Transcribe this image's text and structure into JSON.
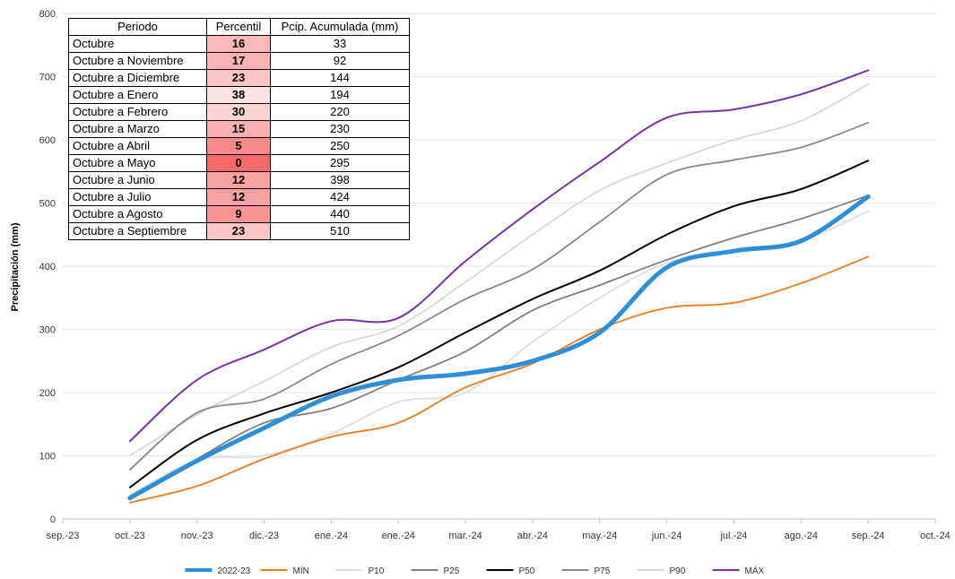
{
  "chart_data": {
    "type": "line",
    "ylabel": "Precipitación (mm)",
    "xlabel": "",
    "ylim": [
      0,
      800
    ],
    "yticks": [
      0,
      100,
      200,
      300,
      400,
      500,
      600,
      700,
      800
    ],
    "grid": "horizontal",
    "legend_position": "bottom",
    "x_ticks": [
      "sep.-23",
      "oct.-23",
      "nov.-23",
      "dic.-23",
      "ene.-24",
      "ene.-24",
      "mar.-24",
      "abr.-24",
      "may.-24",
      "jun.-24",
      "jul.-24",
      "ago.-24",
      "sep.-24",
      "oct.-24"
    ],
    "x": [
      "oct.-23",
      "nov.-23",
      "dic.-23",
      "ene.-24",
      "ene.-24",
      "mar.-24",
      "abr.-24",
      "may.-24",
      "jun.-24",
      "jul.-24",
      "ago.-24",
      "sep.-24"
    ],
    "series": [
      {
        "name": "2022-23",
        "color": "#2e8fd8",
        "width": 5,
        "values": [
          33,
          92,
          144,
          194,
          220,
          230,
          250,
          295,
          398,
          424,
          440,
          510
        ]
      },
      {
        "name": "MÍN",
        "color": "#f07a1a",
        "width": 1.8,
        "values": [
          26,
          52,
          95,
          130,
          152,
          208,
          246,
          300,
          334,
          342,
          373,
          415
        ]
      },
      {
        "name": "P10",
        "color": "#dddddd",
        "width": 1.8,
        "values": [
          38,
          93,
          100,
          135,
          185,
          200,
          280,
          350,
          405,
          425,
          440,
          487
        ]
      },
      {
        "name": "P25",
        "color": "#808080",
        "width": 1.8,
        "values": [
          32,
          95,
          152,
          175,
          220,
          265,
          330,
          370,
          410,
          445,
          475,
          512
        ]
      },
      {
        "name": "P50",
        "color": "#000000",
        "width": 2,
        "values": [
          50,
          125,
          167,
          200,
          240,
          295,
          348,
          393,
          450,
          495,
          522,
          567
        ]
      },
      {
        "name": "P75",
        "color": "#888888",
        "width": 1.8,
        "values": [
          78,
          168,
          190,
          245,
          290,
          348,
          395,
          470,
          545,
          568,
          588,
          627
        ]
      },
      {
        "name": "P90",
        "color": "#d8d8d8",
        "width": 1.8,
        "values": [
          100,
          165,
          218,
          272,
          305,
          375,
          450,
          520,
          563,
          600,
          630,
          688
        ]
      },
      {
        "name": "MÁX",
        "color": "#7b2fa8",
        "width": 2,
        "values": [
          123,
          220,
          268,
          313,
          318,
          408,
          490,
          565,
          635,
          648,
          672,
          710
        ]
      }
    ]
  },
  "table": {
    "headers": [
      "Periodo",
      "Percentil",
      "Pcip. Acumulada (mm)"
    ],
    "rows": [
      {
        "period": "Octubre",
        "percentile": "16",
        "accumulated": "33",
        "color": "#fbb8b8"
      },
      {
        "period": "Octubre a Noviembre",
        "percentile": "17",
        "accumulated": "92",
        "color": "#fbb4b4"
      },
      {
        "period": "Octubre a Diciembre",
        "percentile": "23",
        "accumulated": "144",
        "color": "#fcc6c6"
      },
      {
        "period": "Octubre a Enero",
        "percentile": "38",
        "accumulated": "194",
        "color": "#fde4e4"
      },
      {
        "period": "Octubre a Febrero",
        "percentile": "30",
        "accumulated": "220",
        "color": "#fcd4d4"
      },
      {
        "period": "Octubre a Marzo",
        "percentile": "15",
        "accumulated": "230",
        "color": "#fab0b0"
      },
      {
        "period": "Octubre a Abril",
        "percentile": "5",
        "accumulated": "250",
        "color": "#f88a8a"
      },
      {
        "period": "Octubre a Mayo",
        "percentile": "0",
        "accumulated": "295",
        "color": "#f66a6a"
      },
      {
        "period": "Octubre a Junio",
        "percentile": "12",
        "accumulated": "398",
        "color": "#f9a2a2"
      },
      {
        "period": "Octubre a Julio",
        "percentile": "12",
        "accumulated": "424",
        "color": "#f9a2a2"
      },
      {
        "period": "Octubre a Agosto",
        "percentile": "9",
        "accumulated": "440",
        "color": "#f99494"
      },
      {
        "period": "Octubre a Septiembre",
        "percentile": "23",
        "accumulated": "510",
        "color": "#fcc6c6"
      }
    ]
  }
}
